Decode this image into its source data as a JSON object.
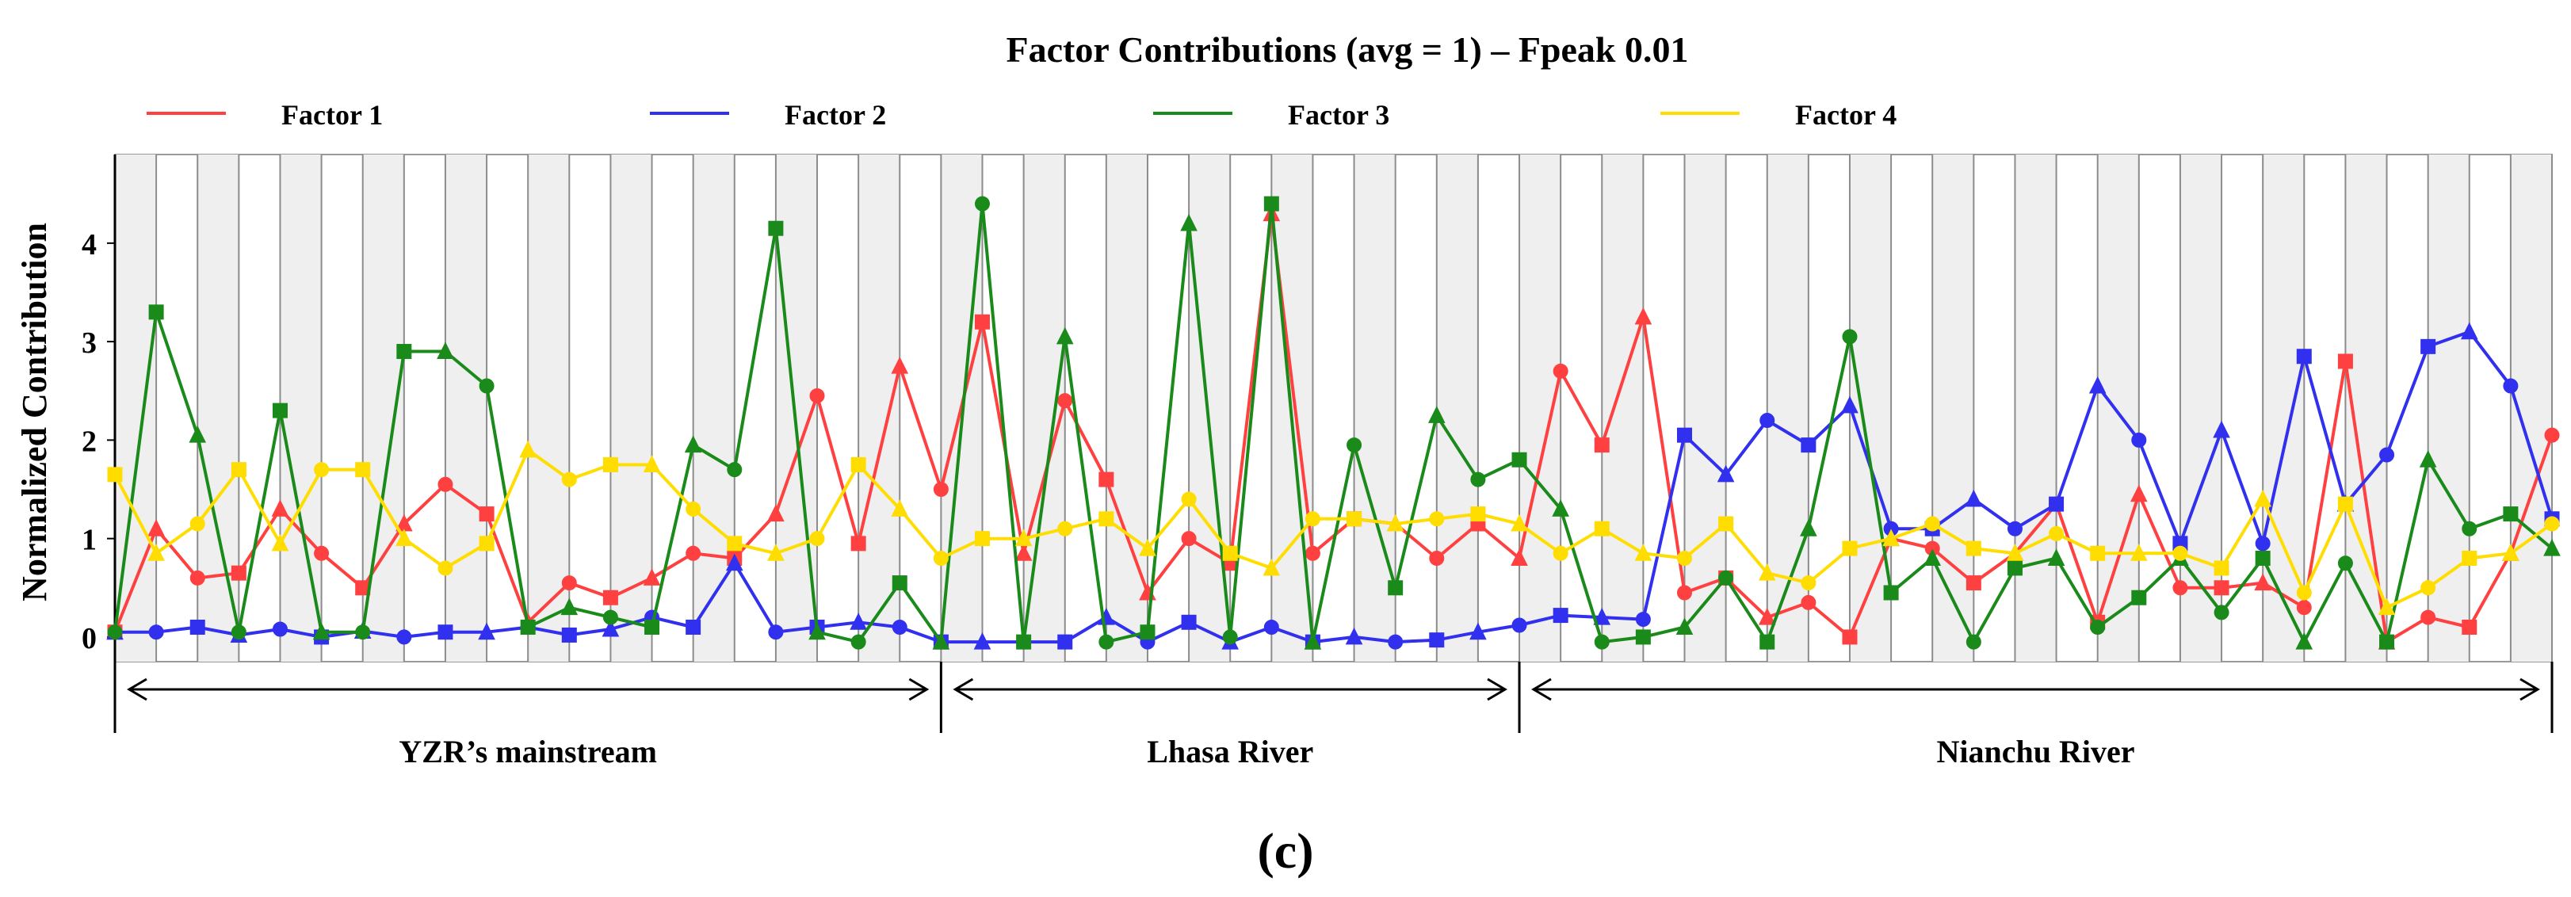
{
  "chart_data": {
    "type": "line",
    "title": "Factor Contributions (avg = 1) – Fpeak 0.01",
    "ylabel": "Normalized Contribution",
    "xlabel": "",
    "ylim": [
      -0.25,
      4.9
    ],
    "yticks": [
      "0",
      "1",
      "2",
      "3",
      "4"
    ],
    "grid": "vertical",
    "legend_position": "top",
    "sample_count": 60,
    "series": [
      {
        "name": "Factor 1",
        "color": "#ff4040",
        "values": [
          0.05,
          1.1,
          0.6,
          0.65,
          1.3,
          0.85,
          0.5,
          1.15,
          1.55,
          1.25,
          0.15,
          0.55,
          0.4,
          0.6,
          0.85,
          0.8,
          1.25,
          2.45,
          0.95,
          2.75,
          1.5,
          3.2,
          0.85,
          2.4,
          1.6,
          0.45,
          1.0,
          0.75,
          4.3,
          0.85,
          1.2,
          1.15,
          0.8,
          1.15,
          0.8,
          2.7,
          1.95,
          3.25,
          0.45,
          0.6,
          0.2,
          0.35,
          0.0,
          1.0,
          0.9,
          0.55,
          0.85,
          1.35,
          0.15,
          1.45,
          0.5,
          0.5,
          0.55,
          0.3,
          2.8,
          -0.05,
          0.2,
          0.1,
          0.85,
          2.05
        ]
      },
      {
        "name": "Factor 2",
        "color": "#3030ee",
        "values": [
          0.05,
          0.05,
          0.1,
          0.02,
          0.08,
          0.0,
          0.06,
          0.0,
          0.05,
          0.05,
          0.1,
          0.02,
          0.08,
          0.2,
          0.1,
          0.75,
          0.05,
          0.1,
          0.15,
          0.1,
          -0.05,
          -0.05,
          -0.05,
          -0.05,
          0.2,
          -0.05,
          0.15,
          -0.05,
          0.1,
          -0.05,
          0.0,
          -0.05,
          -0.03,
          0.05,
          0.12,
          0.22,
          0.2,
          0.18,
          2.05,
          1.65,
          2.2,
          1.95,
          2.35,
          1.1,
          1.1,
          1.4,
          1.1,
          1.35,
          2.55,
          2.0,
          0.95,
          2.1,
          0.95,
          2.85,
          1.35,
          1.85,
          2.95,
          3.1,
          2.55,
          1.2
        ]
      },
      {
        "name": "Factor 3",
        "color": "#1a8a1a",
        "values": [
          0.05,
          3.3,
          2.05,
          0.05,
          2.3,
          0.05,
          0.05,
          2.9,
          2.9,
          2.55,
          0.1,
          0.3,
          0.2,
          0.1,
          1.95,
          1.7,
          4.15,
          0.05,
          -0.05,
          0.55,
          -0.05,
          4.4,
          -0.05,
          3.05,
          -0.05,
          0.05,
          4.2,
          0.0,
          4.4,
          -0.05,
          1.95,
          0.5,
          2.25,
          1.6,
          1.8,
          1.3,
          -0.05,
          0.0,
          0.1,
          0.6,
          -0.05,
          1.1,
          3.05,
          0.45,
          0.8,
          -0.05,
          0.7,
          0.8,
          0.1,
          0.4,
          0.8,
          0.25,
          0.8,
          -0.05,
          0.75,
          -0.05,
          1.8,
          1.1,
          1.25,
          0.9
        ]
      },
      {
        "name": "Factor 4",
        "color": "#ffdd00",
        "values": [
          1.65,
          0.85,
          1.15,
          1.7,
          0.95,
          1.7,
          1.7,
          1.0,
          0.7,
          0.95,
          1.9,
          1.6,
          1.75,
          1.75,
          1.3,
          0.95,
          0.85,
          1.0,
          1.75,
          1.3,
          0.8,
          1.0,
          1.0,
          1.1,
          1.2,
          0.9,
          1.4,
          0.85,
          0.7,
          1.2,
          1.2,
          1.15,
          1.2,
          1.25,
          1.15,
          0.85,
          1.1,
          0.85,
          0.8,
          1.15,
          0.65,
          0.55,
          0.9,
          1.0,
          1.15,
          0.9,
          0.85,
          1.05,
          0.85,
          0.85,
          0.85,
          0.7,
          1.4,
          0.45,
          1.35,
          0.3,
          0.5,
          0.8,
          0.85,
          1.15
        ]
      }
    ],
    "groups": [
      {
        "label": "YZR’s mainstream",
        "from": 0,
        "to": 20
      },
      {
        "label": "Lhasa River",
        "from": 20,
        "to": 34
      },
      {
        "label": "Nianchu River",
        "from": 34,
        "to": 59
      }
    ],
    "panel_label": "(c)"
  }
}
